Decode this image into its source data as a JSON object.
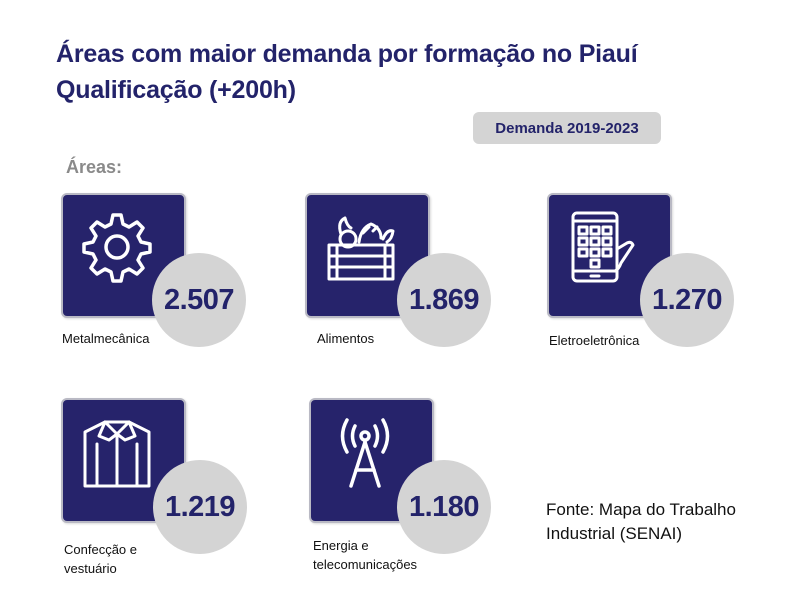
{
  "title_line1": "Áreas com maior demanda por formação no Piauí",
  "title_line2": "Qualificação (+200h)",
  "period_badge": "Demanda 2019-2023",
  "areas_label": "Áreas:",
  "areas": [
    {
      "label": "Metalmecânica",
      "value": "2.507",
      "icon": "gear-icon"
    },
    {
      "label": "Alimentos",
      "value": "1.869",
      "icon": "vegetable-crate-icon"
    },
    {
      "label": "Eletroeletrônica",
      "value": "1.270",
      "icon": "smartphone-keypad-icon"
    },
    {
      "label_line1": "Confecção e",
      "label_line2": "vestuário",
      "value": "1.219",
      "icon": "shirt-icon"
    },
    {
      "label_line1": "Energia e",
      "label_line2": "telecomunicações",
      "value": "1.180",
      "icon": "antenna-tower-icon"
    }
  ],
  "source_line1": "Fonte: Mapa do Trabalho",
  "source_line2": "Industrial (SENAI)",
  "colors": {
    "tile": "#26236b",
    "circle": "#d4d4d4",
    "title": "#23236a",
    "label_gray": "#8a8a8a"
  }
}
